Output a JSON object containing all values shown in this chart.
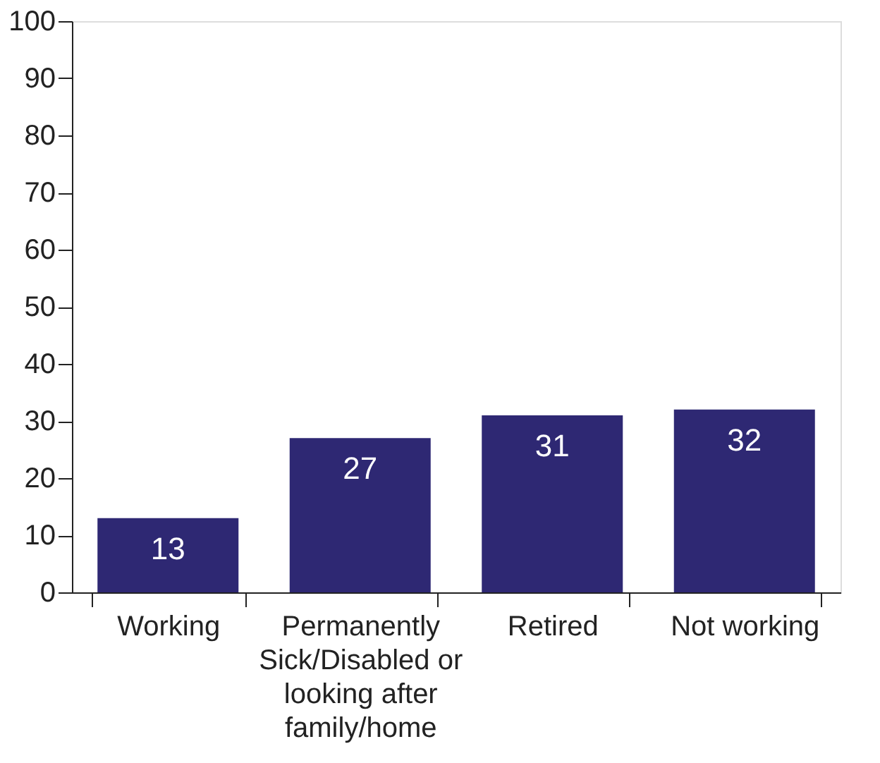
{
  "chart_data": {
    "type": "bar",
    "categories": [
      "Working",
      "Permanently Sick/Disabled or looking after family/home",
      "Retired",
      "Not working"
    ],
    "values": [
      13,
      27,
      31,
      32
    ],
    "color": "#2e2873",
    "ylim": [
      0,
      100
    ],
    "yticks": [
      0,
      10,
      20,
      30,
      40,
      50,
      60,
      70,
      80,
      90,
      100
    ],
    "grid": false,
    "data_labels": true
  }
}
